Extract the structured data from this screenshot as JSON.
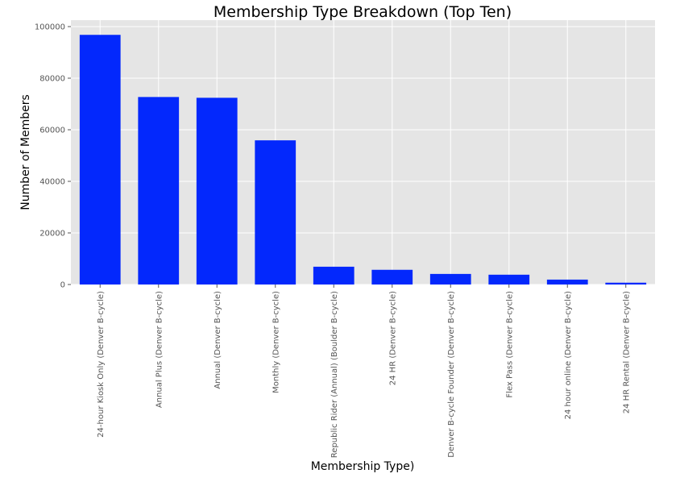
{
  "chart_data": {
    "type": "bar",
    "title": "Membership Type Breakdown (Top Ten)",
    "xlabel": "Membership Type)",
    "ylabel": "Number of Members",
    "ylim": [
      0,
      100000
    ],
    "yticks": [
      0,
      20000,
      40000,
      60000,
      80000,
      100000
    ],
    "grid": true,
    "bar_color": "#0328fc",
    "background_color": "#e5e5e5",
    "grid_color": "#ffffff",
    "categories": [
      "24-hour Kiosk Only (Denver B-cycle)",
      "Annual Plus (Denver B-cycle)",
      "Annual (Denver B-cycle)",
      "Monthly (Denver B-cycle)",
      "Republic Rider (Annual) (Boulder B-cycle)",
      "24 HR (Denver B-cycle)",
      "Denver B-cycle Founder (Denver B-cycle)",
      "Flex Pass (Denver B-cycle)",
      "24 hour online (Denver B-cycle)",
      "24 HR Rental (Denver B-cycle)"
    ],
    "values": [
      96800,
      72700,
      72400,
      55900,
      6900,
      5700,
      4100,
      3800,
      1900,
      700
    ]
  }
}
